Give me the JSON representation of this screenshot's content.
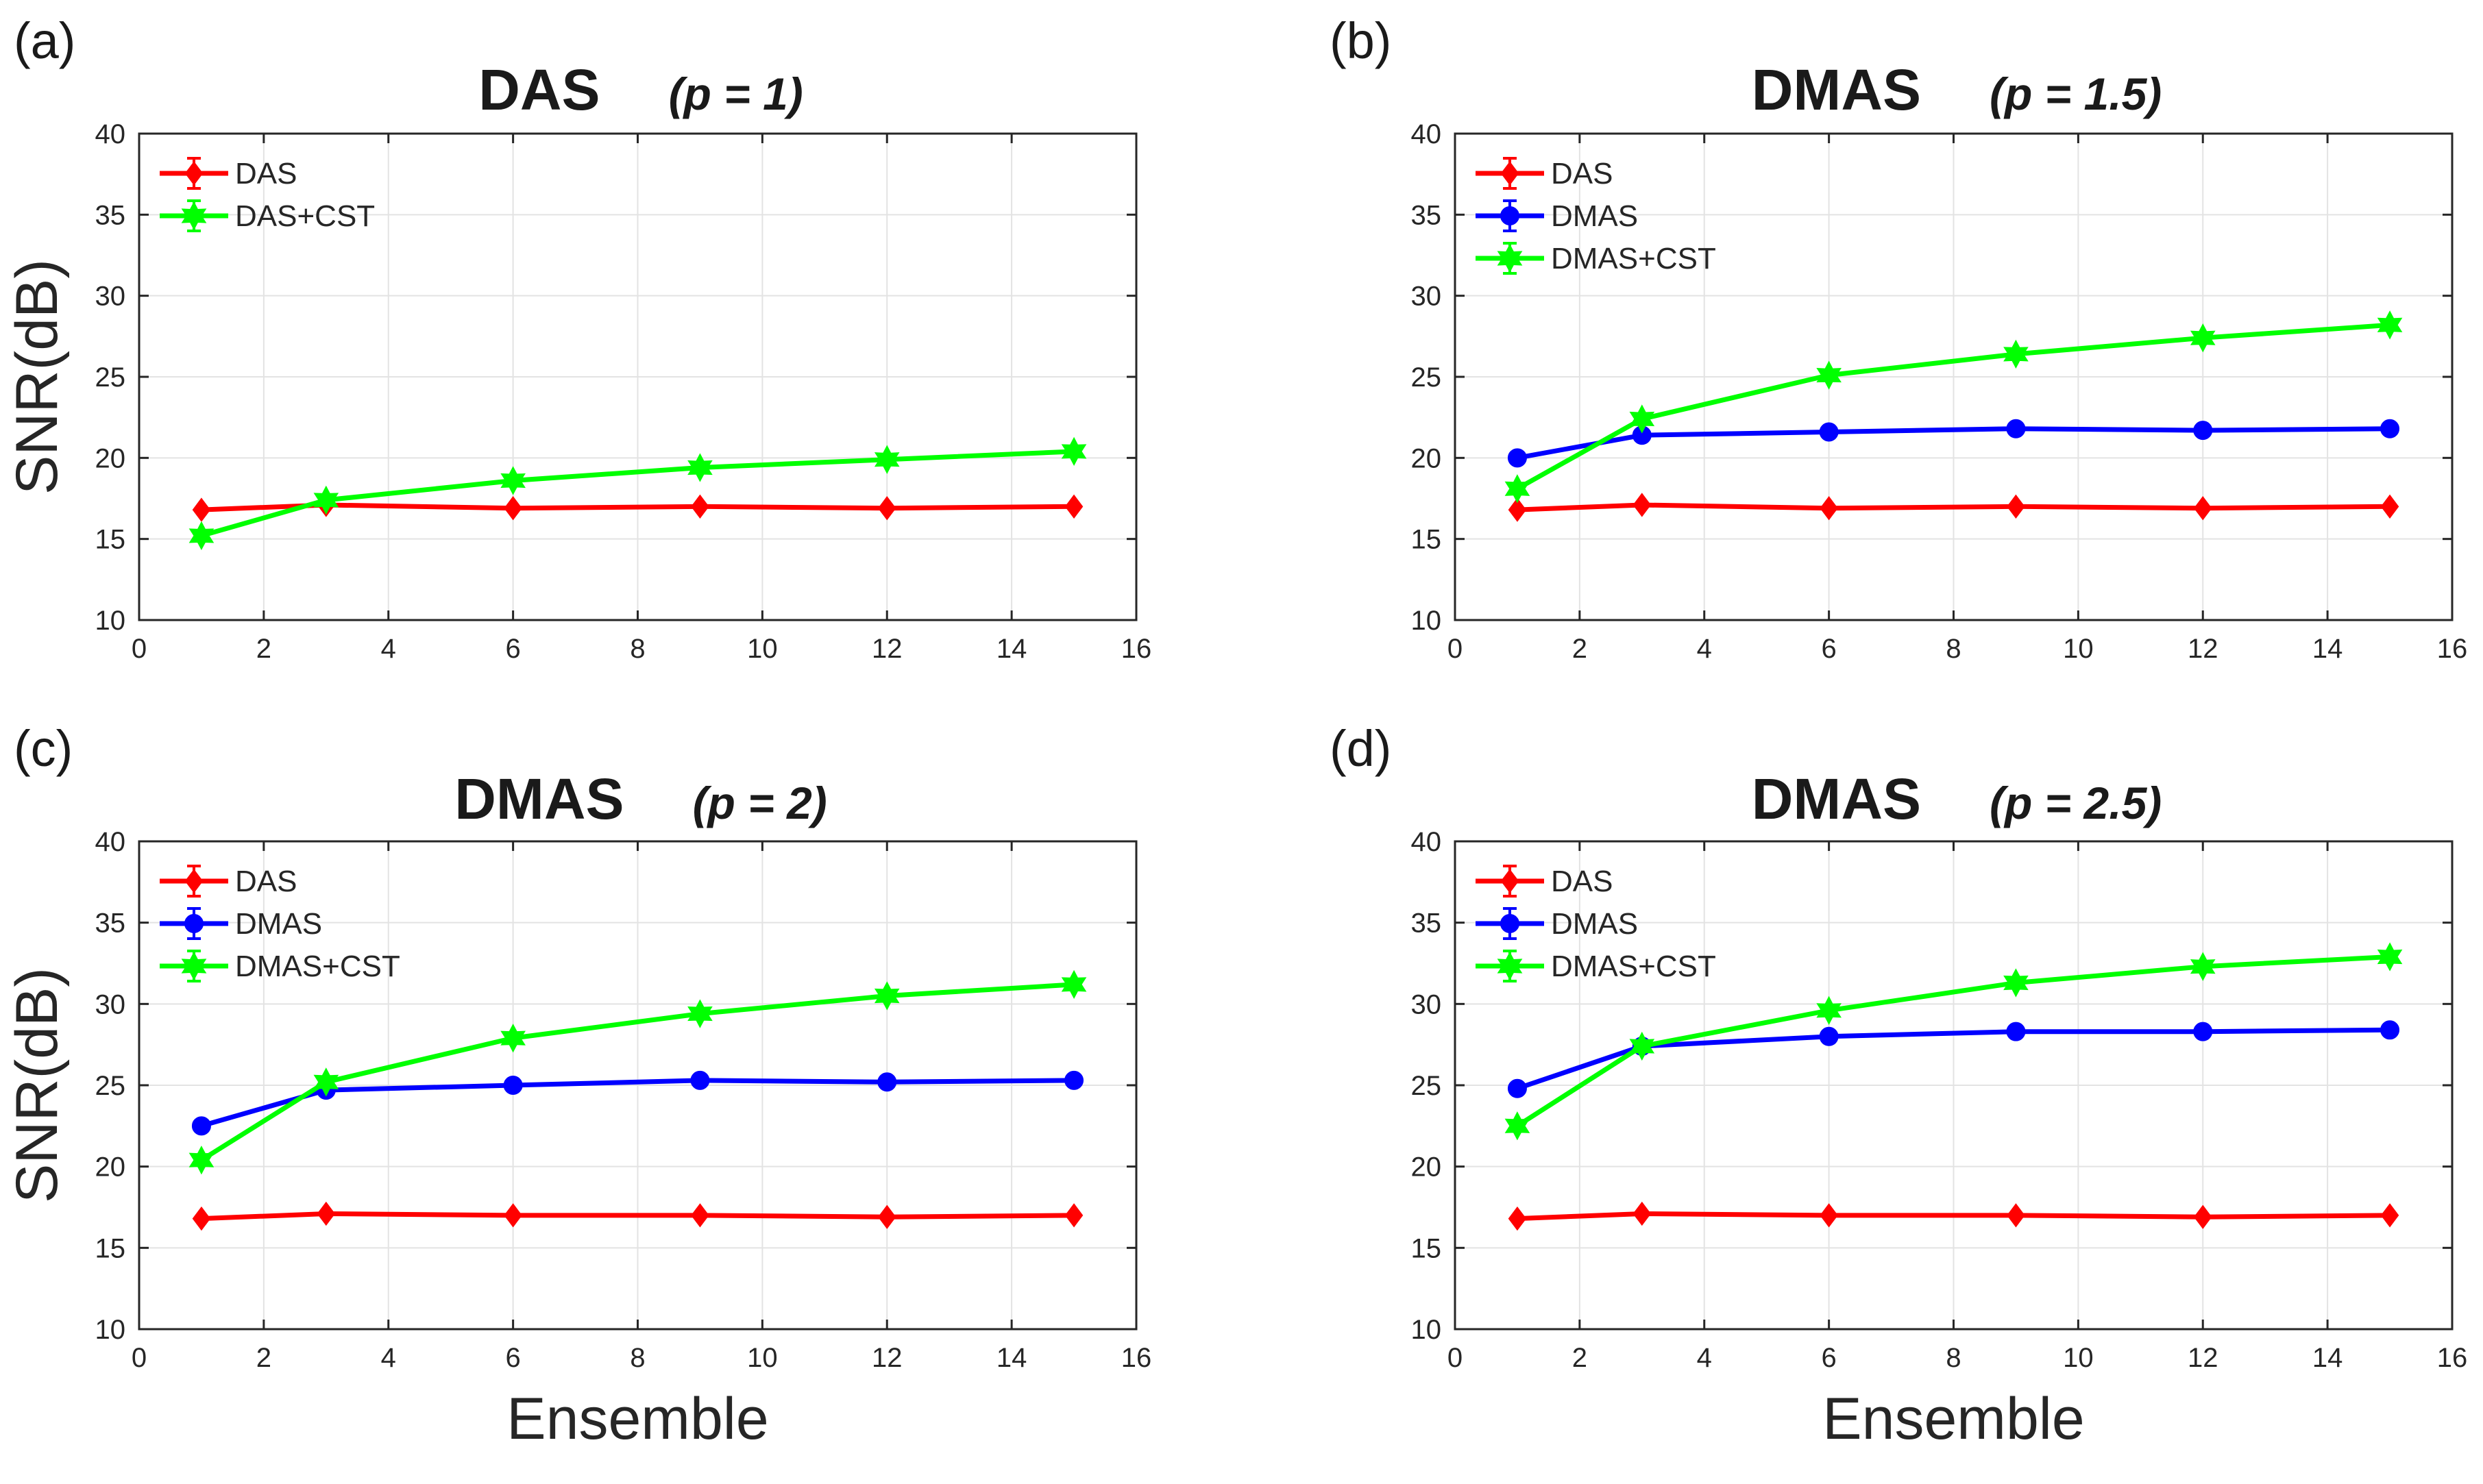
{
  "colors": {
    "DAS": "#ff0000",
    "DMAS": "#0000ff",
    "CST": "#00ff00"
  },
  "shared": {
    "xlabel": "Ensemble",
    "ylabel": "SNR(dB)",
    "xlim": [
      0,
      16
    ],
    "ylim": [
      10,
      40
    ],
    "xticks": [
      "0",
      "2",
      "4",
      "6",
      "8",
      "10",
      "12",
      "14",
      "16"
    ],
    "yticks": [
      "10",
      "15",
      "20",
      "25",
      "30",
      "35",
      "40"
    ],
    "grid": true,
    "legend_position": "top-left"
  },
  "chart_data": [
    {
      "panel": "(a)",
      "type": "line",
      "title": "DAS",
      "subtitle": "(p = 1)",
      "show_xlabel": false,
      "show_ylabel": true,
      "x": [
        1,
        3,
        6,
        9,
        12,
        15
      ],
      "series": [
        {
          "name": "DAS",
          "color_key": "DAS",
          "marker": "diamond",
          "values": [
            16.8,
            17.1,
            16.9,
            17.0,
            16.9,
            17.0
          ]
        },
        {
          "name": "DAS+CST",
          "color_key": "CST",
          "marker": "hexagram",
          "values": [
            15.2,
            17.4,
            18.6,
            19.4,
            19.9,
            20.4
          ]
        }
      ]
    },
    {
      "panel": "(b)",
      "type": "line",
      "title": "DMAS",
      "subtitle": "(p = 1.5)",
      "show_xlabel": false,
      "show_ylabel": false,
      "x": [
        1,
        3,
        6,
        9,
        12,
        15
      ],
      "series": [
        {
          "name": "DAS",
          "color_key": "DAS",
          "marker": "diamond",
          "values": [
            16.8,
            17.1,
            16.9,
            17.0,
            16.9,
            17.0
          ]
        },
        {
          "name": "DMAS",
          "color_key": "DMAS",
          "marker": "circle",
          "values": [
            20.0,
            21.4,
            21.6,
            21.8,
            21.7,
            21.8
          ]
        },
        {
          "name": "DMAS+CST",
          "color_key": "CST",
          "marker": "hexagram",
          "values": [
            18.1,
            22.4,
            25.1,
            26.4,
            27.4,
            28.2
          ]
        }
      ]
    },
    {
      "panel": "(c)",
      "type": "line",
      "title": "DMAS",
      "subtitle": "(p = 2)",
      "show_xlabel": true,
      "show_ylabel": true,
      "x": [
        1,
        3,
        6,
        9,
        12,
        15
      ],
      "series": [
        {
          "name": "DAS",
          "color_key": "DAS",
          "marker": "diamond",
          "values": [
            16.8,
            17.1,
            17.0,
            17.0,
            16.9,
            17.0
          ]
        },
        {
          "name": "DMAS",
          "color_key": "DMAS",
          "marker": "circle",
          "values": [
            22.5,
            24.7,
            25.0,
            25.3,
            25.2,
            25.3
          ]
        },
        {
          "name": "DMAS+CST",
          "color_key": "CST",
          "marker": "hexagram",
          "values": [
            20.4,
            25.2,
            27.9,
            29.4,
            30.5,
            31.2
          ]
        }
      ]
    },
    {
      "panel": "(d)",
      "type": "line",
      "title": "DMAS",
      "subtitle": "(p = 2.5)",
      "show_xlabel": true,
      "show_ylabel": false,
      "x": [
        1,
        3,
        6,
        9,
        12,
        15
      ],
      "series": [
        {
          "name": "DAS",
          "color_key": "DAS",
          "marker": "diamond",
          "values": [
            16.8,
            17.1,
            17.0,
            17.0,
            16.9,
            17.0
          ]
        },
        {
          "name": "DMAS",
          "color_key": "DMAS",
          "marker": "circle",
          "values": [
            24.8,
            27.4,
            28.0,
            28.3,
            28.3,
            28.4
          ]
        },
        {
          "name": "DMAS+CST",
          "color_key": "CST",
          "marker": "hexagram",
          "values": [
            22.5,
            27.4,
            29.6,
            31.3,
            32.3,
            32.9
          ]
        }
      ]
    }
  ]
}
